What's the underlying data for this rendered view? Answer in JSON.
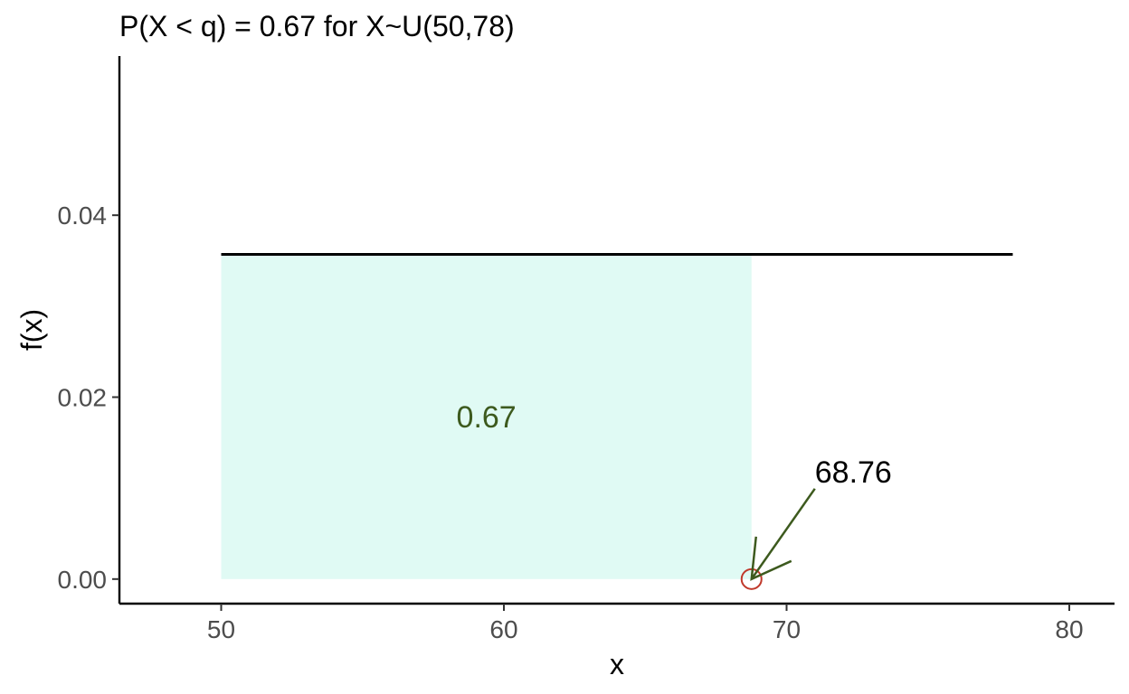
{
  "chart_data": {
    "type": "area",
    "title": "P(X < q) = 0.67 for X~U(50,78)",
    "xlabel": "x",
    "ylabel": "f(x)",
    "xlim": [
      46.4,
      81.6
    ],
    "ylim": [
      -0.0027,
      0.0575
    ],
    "x_ticks": [
      50,
      60,
      70,
      80
    ],
    "x_tick_labels": [
      "50",
      "60",
      "70",
      "80"
    ],
    "y_ticks": [
      0.0,
      0.02,
      0.04
    ],
    "y_tick_labels": [
      "0.00",
      "0.02",
      "0.04"
    ],
    "grid": false,
    "distribution": {
      "name": "uniform",
      "min": 50,
      "max": 78,
      "density": 0.0357
    },
    "density_line": {
      "x": [
        50,
        78
      ],
      "y": [
        0.0357,
        0.0357
      ]
    },
    "shaded_region": {
      "x_from": 50,
      "x_to": 68.76,
      "y": 0.0357,
      "probability_label": "0.67"
    },
    "quantile": {
      "x": 68.76,
      "y": 0,
      "label": "68.76"
    },
    "colors": {
      "shade": "#e0faf4",
      "line": "#000000",
      "arrow": "#3d5a1e",
      "marker": "#c0392b",
      "area_label": "#3d5a1e",
      "axis": "#000000",
      "tick_text": "#4d4d4d"
    }
  }
}
